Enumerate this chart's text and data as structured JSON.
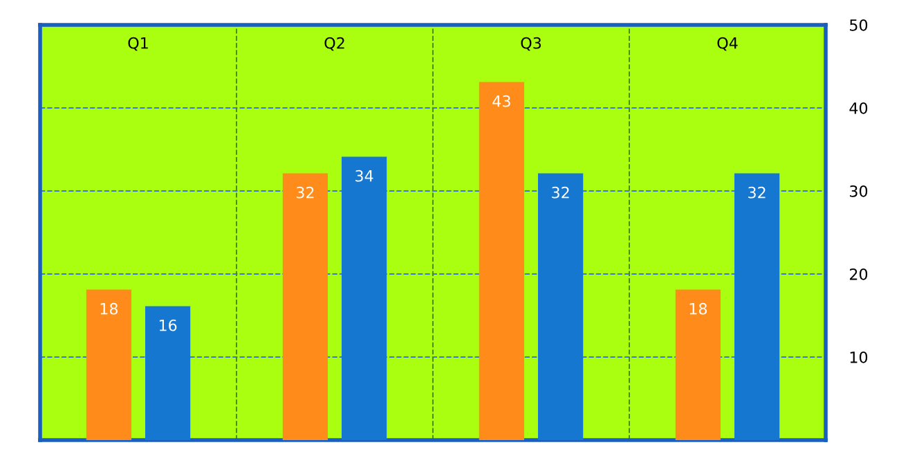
{
  "chart_data": {
    "type": "bar",
    "categories": [
      "Q1",
      "Q2",
      "Q3",
      "Q4"
    ],
    "series": [
      {
        "color": "#ff8c1a",
        "values": [
          18,
          32,
          43,
          18
        ]
      },
      {
        "color": "#1577d0",
        "values": [
          16,
          34,
          32,
          32
        ]
      }
    ],
    "ylim": [
      0,
      50
    ],
    "yticks": [
      10,
      20,
      30,
      40,
      50
    ],
    "grid": true,
    "data_labels": true
  }
}
